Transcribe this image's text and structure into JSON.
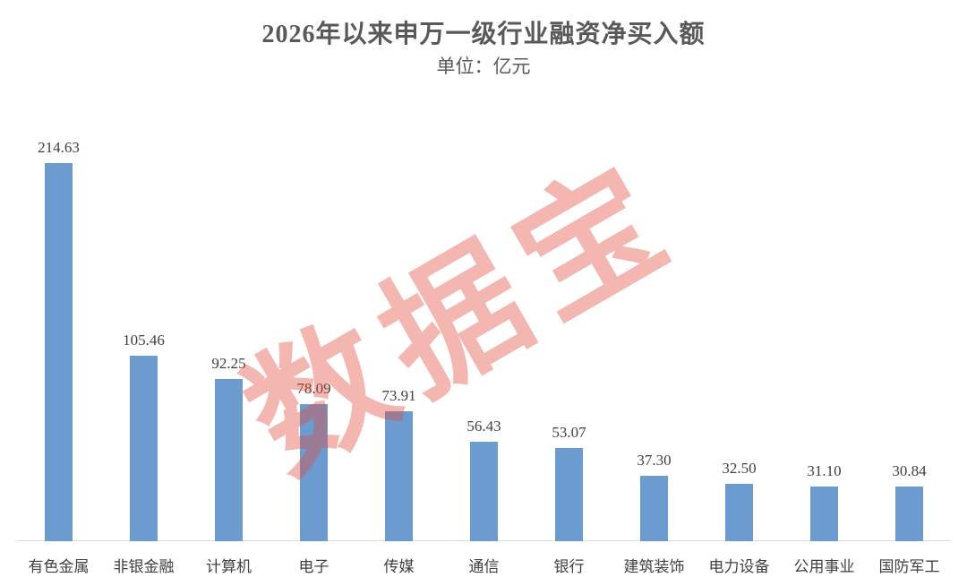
{
  "header": {
    "title": "2026年以来申万一级行业融资净买入额",
    "subtitle": "单位：亿元"
  },
  "watermark": {
    "text": "数据宝",
    "color": "#E4483C",
    "opacity": 0.4,
    "rotation_deg": -30
  },
  "colors": {
    "bar": "#6C9BD0",
    "title_text": "#595959",
    "label_text": "#404040",
    "axis_line": "#D9D9D9",
    "background": "#FFFFFF"
  },
  "chart_data": {
    "type": "bar",
    "title": "2026年以来申万一级行业融资净买入额",
    "subtitle": "单位：亿元",
    "xlabel": "",
    "ylabel": "亿元",
    "ylim": [
      0,
      282
    ],
    "grid": false,
    "legend": false,
    "value_labels_shown": true,
    "categories": [
      "有色金属",
      "非银金融",
      "计算机",
      "电子",
      "传媒",
      "通信",
      "银行",
      "建筑装饰",
      "电力设备",
      "公用事业",
      "国防军工"
    ],
    "values": [
      214.63,
      105.46,
      92.25,
      78.09,
      73.91,
      56.43,
      53.07,
      37.3,
      32.5,
      31.1,
      30.84
    ],
    "value_labels": [
      "214.63",
      "105.46",
      "92.25",
      "78.09",
      "73.91",
      "56.43",
      "53.07",
      "37.30",
      "32.50",
      "31.10",
      "30.84"
    ]
  }
}
